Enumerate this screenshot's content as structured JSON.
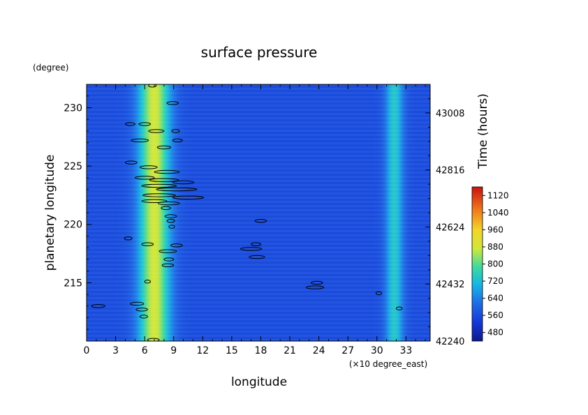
{
  "chart_data": {
    "type": "heatmap",
    "title": "surface pressure",
    "xlabel": "longitude",
    "x_unit": "(×10 degree_east)",
    "ylabel": "planetary longitude",
    "y_unit": "(degree)",
    "y2label": "Time (hours)",
    "xlim": [
      0,
      35.5
    ],
    "ylim": [
      210,
      232
    ],
    "y2lim": [
      42240,
      43104
    ],
    "x_ticks": [
      "0",
      "3",
      "6",
      "9",
      "12",
      "15",
      "18",
      "21",
      "24",
      "27",
      "30",
      "33"
    ],
    "y_ticks": [
      "215",
      "220",
      "225",
      "230"
    ],
    "y2_ticks": [
      "42240",
      "42432",
      "42624",
      "42816",
      "43008"
    ],
    "colorbar": {
      "ticks": [
        "480",
        "560",
        "640",
        "720",
        "800",
        "880",
        "960",
        "1040",
        "1120"
      ],
      "range": [
        440,
        1160
      ]
    },
    "field": {
      "background": 560,
      "bands": [
        {
          "lon_center": 7.0,
          "width": 1.6,
          "peak": 880
        },
        {
          "lon_center": 31.8,
          "width": 0.9,
          "peak": 740
        }
      ]
    },
    "contours": [
      [
        6.8,
        231.9,
        0.4
      ],
      [
        8.9,
        230.4,
        0.6
      ],
      [
        4.5,
        228.6,
        0.5
      ],
      [
        6.0,
        228.6,
        0.6
      ],
      [
        7.2,
        228.0,
        0.8
      ],
      [
        9.2,
        228.0,
        0.4
      ],
      [
        5.5,
        227.2,
        0.9
      ],
      [
        9.4,
        227.2,
        0.5
      ],
      [
        8.0,
        226.6,
        0.7
      ],
      [
        4.6,
        225.3,
        0.6
      ],
      [
        6.4,
        224.9,
        0.9
      ],
      [
        8.3,
        224.5,
        1.3
      ],
      [
        6.0,
        224.0,
        1.0
      ],
      [
        8.0,
        223.8,
        1.5
      ],
      [
        10.0,
        223.6,
        1.1
      ],
      [
        7.5,
        223.3,
        1.8
      ],
      [
        9.3,
        223.0,
        2.1
      ],
      [
        7.5,
        222.5,
        1.7
      ],
      [
        10.5,
        222.3,
        1.6
      ],
      [
        7.0,
        222.0,
        1.3
      ],
      [
        8.5,
        221.8,
        1.1
      ],
      [
        8.2,
        221.4,
        0.5
      ],
      [
        8.7,
        220.7,
        0.6
      ],
      [
        8.7,
        220.3,
        0.4
      ],
      [
        18.0,
        220.3,
        0.6
      ],
      [
        8.8,
        219.8,
        0.3
      ],
      [
        4.3,
        218.8,
        0.4
      ],
      [
        6.3,
        218.3,
        0.6
      ],
      [
        9.3,
        218.2,
        0.6
      ],
      [
        17.5,
        218.3,
        0.5
      ],
      [
        17.0,
        217.9,
        1.1
      ],
      [
        8.4,
        217.7,
        0.9
      ],
      [
        17.6,
        217.2,
        0.8
      ],
      [
        8.5,
        217.0,
        0.5
      ],
      [
        8.4,
        216.5,
        0.6
      ],
      [
        6.3,
        215.1,
        0.3
      ],
      [
        23.8,
        215.0,
        0.6
      ],
      [
        23.6,
        214.6,
        0.9
      ],
      [
        30.2,
        214.1,
        0.3
      ],
      [
        5.2,
        213.2,
        0.7
      ],
      [
        1.2,
        213.0,
        0.7
      ],
      [
        5.7,
        212.7,
        0.6
      ],
      [
        32.3,
        212.8,
        0.3
      ],
      [
        5.9,
        212.1,
        0.4
      ],
      [
        6.9,
        210.1,
        0.6
      ]
    ]
  }
}
